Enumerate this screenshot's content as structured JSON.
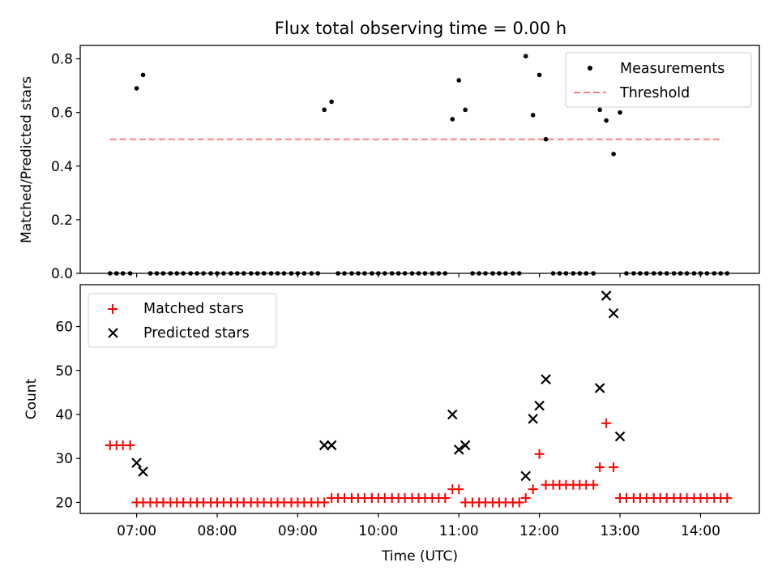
{
  "figure": {
    "title": "Flux total observing time = 0.00 h"
  },
  "chart_data": [
    {
      "type": "scatter",
      "ylabel": "Matched/Predicted stars",
      "xlim": [
        6.3,
        14.73
      ],
      "ylim": [
        0.0,
        0.85
      ],
      "yticks": [
        0.0,
        0.2,
        0.4,
        0.6,
        0.8
      ],
      "ytick_labels": [
        "0.0",
        "0.2",
        "0.4",
        "0.6",
        "0.8"
      ],
      "legend_position": "top-right",
      "series": [
        {
          "name": "Measurements",
          "kind": "points",
          "color": "#000000",
          "x": [
            6.67,
            6.75,
            6.83,
            6.92,
            7.0,
            7.08,
            7.17,
            7.25,
            7.33,
            7.42,
            7.5,
            7.58,
            7.67,
            7.75,
            7.83,
            7.92,
            8.0,
            8.08,
            8.17,
            8.25,
            8.33,
            8.42,
            8.5,
            8.58,
            8.67,
            8.75,
            8.83,
            8.92,
            9.0,
            9.08,
            9.17,
            9.25,
            9.33,
            9.42,
            9.5,
            9.58,
            9.67,
            9.75,
            9.83,
            9.92,
            10.0,
            10.08,
            10.17,
            10.25,
            10.33,
            10.42,
            10.5,
            10.58,
            10.67,
            10.75,
            10.83,
            10.92,
            11.0,
            11.08,
            11.17,
            11.25,
            11.33,
            11.42,
            11.5,
            11.58,
            11.67,
            11.75,
            11.83,
            11.92,
            12.0,
            12.08,
            12.17,
            12.25,
            12.33,
            12.42,
            12.5,
            12.58,
            12.67,
            12.75,
            12.83,
            12.92,
            13.0,
            13.08,
            13.17,
            13.25,
            13.33,
            13.42,
            13.5,
            13.58,
            13.67,
            13.75,
            13.83,
            13.92,
            14.0,
            14.08,
            14.17,
            14.25,
            14.33
          ],
          "y": [
            0,
            0,
            0,
            0,
            0.69,
            0.74,
            0,
            0,
            0,
            0,
            0,
            0,
            0,
            0,
            0,
            0,
            0,
            0,
            0,
            0,
            0,
            0,
            0,
            0,
            0,
            0,
            0,
            0,
            0,
            0,
            0,
            0,
            0.61,
            0.64,
            0,
            0,
            0,
            0,
            0,
            0,
            0,
            0,
            0,
            0,
            0,
            0,
            0,
            0,
            0,
            0,
            0,
            0.575,
            0.72,
            0.61,
            0,
            0,
            0,
            0,
            0,
            0,
            0,
            0,
            0.81,
            0.59,
            0.74,
            0.5,
            0,
            0,
            0,
            0,
            0,
            0,
            0,
            0.61,
            0.57,
            0.445,
            0.6,
            0,
            0,
            0,
            0,
            0,
            0,
            0,
            0,
            0,
            0,
            0,
            0,
            0,
            0,
            0,
            0
          ]
        },
        {
          "name": "Threshold",
          "kind": "dashed-line",
          "color": "#ff7f7f",
          "x": [
            6.67,
            14.28
          ],
          "y": [
            0.5,
            0.5
          ]
        }
      ]
    },
    {
      "type": "scatter",
      "xlabel": "Time (UTC)",
      "ylabel": "Count",
      "xlim": [
        6.3,
        14.73
      ],
      "ylim": [
        17.5,
        69.5
      ],
      "xticks": [
        7,
        8,
        9,
        10,
        11,
        12,
        13,
        14
      ],
      "xtick_labels": [
        "07:00",
        "08:00",
        "09:00",
        "10:00",
        "11:00",
        "12:00",
        "13:00",
        "14:00"
      ],
      "yticks": [
        20,
        30,
        40,
        50,
        60
      ],
      "ytick_labels": [
        "20",
        "30",
        "40",
        "50",
        "60"
      ],
      "legend_position": "top-left",
      "series": [
        {
          "name": "Matched stars",
          "kind": "plus",
          "color": "#ff0000",
          "x": [
            6.67,
            6.75,
            6.83,
            6.92,
            7.0,
            7.08,
            7.17,
            7.25,
            7.33,
            7.42,
            7.5,
            7.58,
            7.67,
            7.75,
            7.83,
            7.92,
            8.0,
            8.08,
            8.17,
            8.25,
            8.33,
            8.42,
            8.5,
            8.58,
            8.67,
            8.75,
            8.83,
            8.92,
            9.0,
            9.08,
            9.17,
            9.25,
            9.33,
            9.42,
            9.5,
            9.58,
            9.67,
            9.75,
            9.83,
            9.92,
            10.0,
            10.08,
            10.17,
            10.25,
            10.33,
            10.42,
            10.5,
            10.58,
            10.67,
            10.75,
            10.83,
            10.92,
            11.0,
            11.08,
            11.17,
            11.25,
            11.33,
            11.42,
            11.5,
            11.58,
            11.67,
            11.75,
            11.83,
            11.92,
            12.0,
            12.08,
            12.17,
            12.25,
            12.33,
            12.42,
            12.5,
            12.58,
            12.67,
            12.75,
            12.83,
            12.92,
            13.0,
            13.08,
            13.17,
            13.25,
            13.33,
            13.42,
            13.5,
            13.58,
            13.67,
            13.75,
            13.83,
            13.92,
            14.0,
            14.08,
            14.17,
            14.25,
            14.33
          ],
          "y": [
            33,
            33,
            33,
            33,
            20,
            20,
            20,
            20,
            20,
            20,
            20,
            20,
            20,
            20,
            20,
            20,
            20,
            20,
            20,
            20,
            20,
            20,
            20,
            20,
            20,
            20,
            20,
            20,
            20,
            20,
            20,
            20,
            20,
            21,
            21,
            21,
            21,
            21,
            21,
            21,
            21,
            21,
            21,
            21,
            21,
            21,
            21,
            21,
            21,
            21,
            21,
            23,
            23,
            20,
            20,
            20,
            20,
            20,
            20,
            20,
            20,
            20,
            21,
            23,
            31,
            24,
            24,
            24,
            24,
            24,
            24,
            24,
            24,
            28,
            38,
            28,
            21,
            21,
            21,
            21,
            21,
            21,
            21,
            21,
            21,
            21,
            21,
            21,
            21,
            21,
            21,
            21,
            21
          ]
        },
        {
          "name": "Predicted stars",
          "kind": "x",
          "color": "#000000",
          "x": [
            7.0,
            7.08,
            9.33,
            9.42,
            10.92,
            11.0,
            11.08,
            11.83,
            11.92,
            12.0,
            12.08,
            12.75,
            12.83,
            12.92,
            13.0
          ],
          "y": [
            29,
            27,
            33,
            33,
            40,
            32,
            33,
            26,
            39,
            42,
            48,
            46,
            67,
            63,
            35
          ]
        }
      ]
    }
  ]
}
